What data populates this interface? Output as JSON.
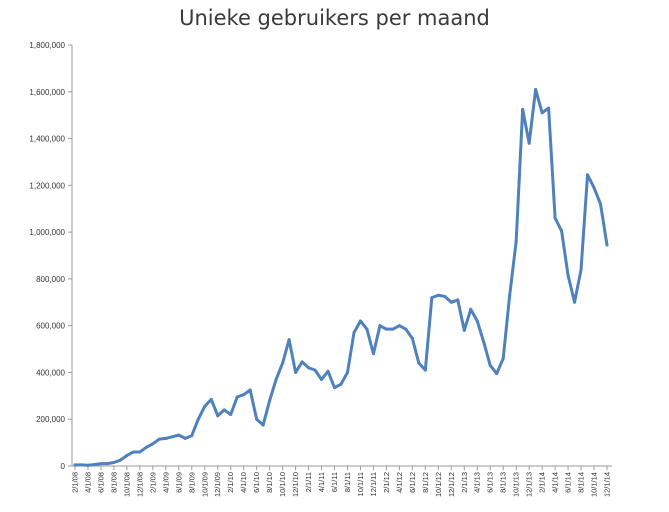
{
  "chart_data": {
    "type": "line",
    "title": "Unieke gebruikers per maand",
    "xlabel": "",
    "ylabel": "",
    "ylim": [
      0,
      1800000
    ],
    "yticks": [
      0,
      200000,
      400000,
      600000,
      800000,
      1000000,
      1200000,
      1400000,
      1600000,
      1800000
    ],
    "ytick_labels": [
      "0",
      "200,000",
      "400,000",
      "600,000",
      "800,000",
      "1,000,000",
      "1,200,000",
      "1,400,000",
      "1,600,000",
      "1,800,000"
    ],
    "grid": false,
    "line_color": "#4f81bd",
    "x": [
      "2008-02",
      "2008-03",
      "2008-04",
      "2008-05",
      "2008-06",
      "2008-07",
      "2008-08",
      "2008-09",
      "2008-10",
      "2008-11",
      "2008-12",
      "2009-01",
      "2009-02",
      "2009-03",
      "2009-04",
      "2009-05",
      "2009-06",
      "2009-07",
      "2009-08",
      "2009-09",
      "2009-10",
      "2009-11",
      "2009-12",
      "2010-01",
      "2010-02",
      "2010-03",
      "2010-04",
      "2010-05",
      "2010-06",
      "2010-07",
      "2010-08",
      "2010-09",
      "2010-10",
      "2010-11",
      "2010-12",
      "2011-01",
      "2011-02",
      "2011-03",
      "2011-04",
      "2011-05",
      "2011-06",
      "2011-07",
      "2011-08",
      "2011-09",
      "2011-10",
      "2011-11",
      "2011-12",
      "2012-01",
      "2012-02",
      "2012-03",
      "2012-04",
      "2012-05",
      "2012-06",
      "2012-07",
      "2012-08",
      "2012-09",
      "2012-10",
      "2012-11",
      "2012-12",
      "2013-01",
      "2013-02",
      "2013-03",
      "2013-04",
      "2013-05",
      "2013-06",
      "2013-07",
      "2013-08",
      "2013-09",
      "2013-10",
      "2013-11",
      "2013-12",
      "2014-01",
      "2014-02",
      "2014-03",
      "2014-04",
      "2014-05",
      "2014-06",
      "2014-07",
      "2014-08",
      "2014-09",
      "2014-10",
      "2014-11",
      "2014-12"
    ],
    "x_tick_labels": [
      "2/1/08",
      "4/1/08",
      "6/1/08",
      "8/1/08",
      "10/1/08",
      "12/1/08",
      "2/1/09",
      "4/1/09",
      "6/1/09",
      "8/1/09",
      "10/1/09",
      "12/1/09",
      "2/1/10",
      "4/1/10",
      "6/1/10",
      "8/1/10",
      "10/1/10",
      "12/1/10",
      "2/1/11",
      "4/1/11",
      "6/1/11",
      "8/1/11",
      "10/1/11",
      "12/1/11",
      "2/1/12",
      "4/1/12",
      "6/1/12",
      "8/1/12",
      "10/1/12",
      "12/1/12",
      "2/1/13",
      "4/1/13",
      "6/1/13",
      "8/1/13",
      "10/1/13",
      "12/1/13",
      "2/1/14",
      "4/1/14",
      "6/1/14",
      "8/1/14",
      "10/1/14",
      "12/1/14"
    ],
    "series": [
      {
        "values": [
          5000,
          5000,
          3000,
          6000,
          10000,
          10000,
          15000,
          25000,
          45000,
          60000,
          60000,
          80000,
          95000,
          115000,
          118000,
          125000,
          132000,
          118000,
          130000,
          200000,
          255000,
          285000,
          215000,
          240000,
          220000,
          295000,
          305000,
          325000,
          200000,
          175000,
          280000,
          370000,
          440000,
          540000,
          400000,
          445000,
          420000,
          410000,
          370000,
          405000,
          335000,
          350000,
          400000,
          570000,
          620000,
          585000,
          480000,
          600000,
          585000,
          585000,
          600000,
          585000,
          545000,
          440000,
          410000,
          720000,
          730000,
          725000,
          700000,
          710000,
          580000,
          670000,
          620000,
          530000,
          430000,
          395000,
          460000,
          730000,
          960000,
          1525000,
          1380000,
          1610000,
          1510000,
          1530000,
          1060000,
          1005000,
          815000,
          700000,
          840000,
          1245000,
          1190000,
          1120000,
          945000
        ]
      }
    ]
  }
}
